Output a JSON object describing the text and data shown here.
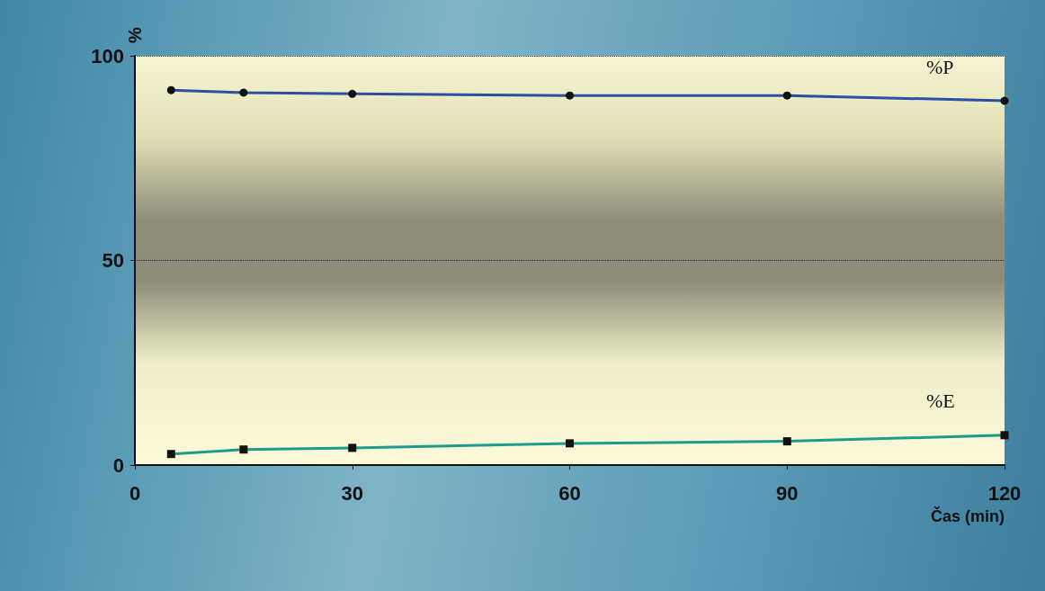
{
  "chart_data": {
    "type": "line",
    "xlabel": "Čas (min)",
    "ylabel": "%",
    "x": [
      5,
      15,
      30,
      60,
      90,
      120
    ],
    "series": [
      {
        "name": "%P",
        "color": "#2d4fa3",
        "marker": "circle",
        "values": [
          91.6,
          91,
          90.7,
          90.3,
          90.3,
          89
        ]
      },
      {
        "name": "%E",
        "color": "#1f9a8c",
        "marker": "square",
        "values": [
          2.7,
          3.8,
          4.2,
          5.3,
          5.8,
          7.3
        ]
      }
    ],
    "xlim": [
      0,
      120
    ],
    "xticks": [
      0,
      30,
      60,
      90,
      120
    ],
    "ylim": [
      0,
      100
    ],
    "yticks": [
      0,
      50,
      100
    ],
    "grid": "y",
    "legend": false,
    "line_style": "solid"
  }
}
